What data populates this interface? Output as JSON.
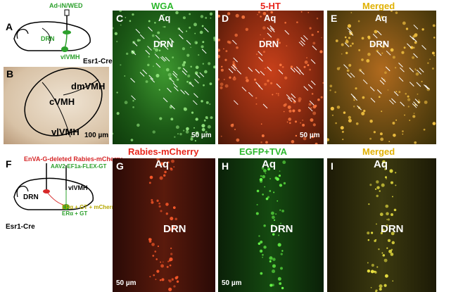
{
  "panels": {
    "A": {
      "letter": "A",
      "virus": "Ad-iN/WED",
      "regions": [
        "DRN",
        "vlVMH"
      ],
      "mouse": "Esr1-Cre"
    },
    "B": {
      "letter": "B",
      "regions": [
        "dmVMH",
        "cVMH",
        "vlVMH"
      ],
      "scale_bar": "100 µm"
    },
    "C": {
      "letter": "C",
      "title": "WGA",
      "aq": "Aq",
      "drn": "DRN",
      "scale_bar": "50 µm"
    },
    "D": {
      "letter": "D",
      "title": "5-HT",
      "aq": "Aq",
      "drn": "DRN",
      "scale_bar": "50 µm"
    },
    "E": {
      "letter": "E",
      "title": "Merged",
      "aq": "Aq",
      "drn": "DRN"
    },
    "F": {
      "letter": "F",
      "virus_1": "EnVA-G-deleted Rabies-mCherry",
      "virus_2": "AAV2-EF1a-FLEX-GT",
      "regions": [
        "vlVMH",
        "DRN"
      ],
      "cells_1": "ERα + GT + mCherry",
      "cells_2": "ERα + GT",
      "mouse": "Esr1-Cre"
    },
    "G": {
      "letter": "G",
      "title": "Rabies-mCherry",
      "aq": "Aq",
      "drn": "DRN",
      "scale_bar": "50 µm"
    },
    "H": {
      "letter": "H",
      "title": "EGFP+TVA",
      "aq": "Aq",
      "drn": "DRN",
      "scale_bar": "50 µm"
    },
    "I": {
      "letter": "I",
      "title": "Merged",
      "aq": "Aq",
      "drn": "DRN"
    }
  }
}
